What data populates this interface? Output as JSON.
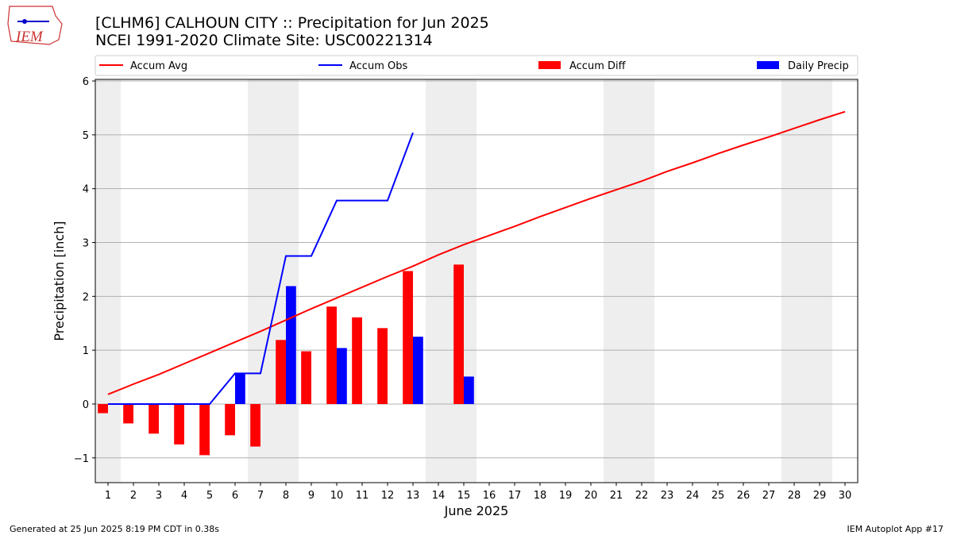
{
  "logo": "IEM",
  "footer_left": "Generated at 25 Jun 2025 8:19 PM CDT in 0.38s",
  "footer_right": "IEM Autoplot App #17",
  "chart_data": {
    "type": "bar_line",
    "title": "[CLHM6] CALHOUN CITY :: Precipitation for Jun 2025",
    "subtitle": "NCEI 1991-2020 Climate Site: USC00221314",
    "xlabel": "June 2025",
    "ylabel": "Precipitation [inch]",
    "x": [
      1,
      2,
      3,
      4,
      5,
      6,
      7,
      8,
      9,
      10,
      11,
      12,
      13,
      14,
      15,
      16,
      17,
      18,
      19,
      20,
      21,
      22,
      23,
      24,
      25,
      26,
      27,
      28,
      29,
      30
    ],
    "xlim": [
      0.5,
      30.5
    ],
    "xticks": [
      1,
      2,
      3,
      4,
      5,
      6,
      7,
      8,
      9,
      10,
      11,
      12,
      13,
      14,
      15,
      16,
      17,
      18,
      19,
      20,
      21,
      22,
      23,
      24,
      25,
      26,
      27,
      28,
      29,
      30
    ],
    "ylim": [
      -1.46,
      6.03
    ],
    "yticks": [
      {
        "value": -1,
        "label": "−1"
      },
      0,
      1,
      2,
      3,
      4,
      5,
      6
    ],
    "grid": true,
    "shaded_spans": [
      [
        0.5,
        1.5
      ],
      [
        6.5,
        8.5
      ],
      [
        13.5,
        15.5
      ],
      [
        20.5,
        22.5
      ],
      [
        27.5,
        29.5
      ]
    ],
    "series": [
      {
        "name": "Accum Avg",
        "kind": "line",
        "color": "#ff0000",
        "values": [
          0.18,
          0.37,
          0.55,
          0.75,
          0.95,
          1.15,
          1.35,
          1.56,
          1.77,
          1.97,
          2.17,
          2.37,
          2.56,
          2.77,
          2.96,
          3.13,
          3.3,
          3.48,
          3.65,
          3.82,
          3.98,
          4.14,
          4.32,
          4.48,
          4.65,
          4.81,
          4.96,
          5.12,
          5.28,
          5.43
        ]
      },
      {
        "name": "Accum Obs",
        "kind": "line",
        "color": "#0000ff",
        "values": [
          0,
          0,
          0,
          0,
          0,
          0.57,
          0.57,
          2.75,
          2.75,
          3.78,
          3.78,
          3.78,
          5.04,
          null,
          null,
          null,
          null,
          null,
          null,
          null,
          null,
          null,
          null,
          null,
          null,
          null,
          null,
          null,
          null,
          null
        ]
      },
      {
        "name": "Accum Diff",
        "kind": "bar",
        "color": "#ff0000",
        "values": [
          -0.17,
          -0.36,
          -0.55,
          -0.75,
          -0.95,
          -0.58,
          -0.79,
          1.19,
          0.98,
          1.81,
          1.61,
          1.41,
          2.47,
          null,
          2.59,
          null,
          null,
          null,
          null,
          null,
          null,
          null,
          null,
          null,
          null,
          null,
          null,
          null,
          null,
          null
        ]
      },
      {
        "name": "Daily Precip",
        "kind": "bar",
        "color": "#0000ff",
        "values": [
          0,
          0,
          0,
          0,
          0,
          0.57,
          0,
          2.19,
          0,
          1.04,
          0,
          0,
          1.25,
          null,
          0.51,
          null,
          null,
          null,
          null,
          null,
          null,
          null,
          null,
          null,
          null,
          null,
          null,
          null,
          null,
          null
        ]
      }
    ]
  }
}
